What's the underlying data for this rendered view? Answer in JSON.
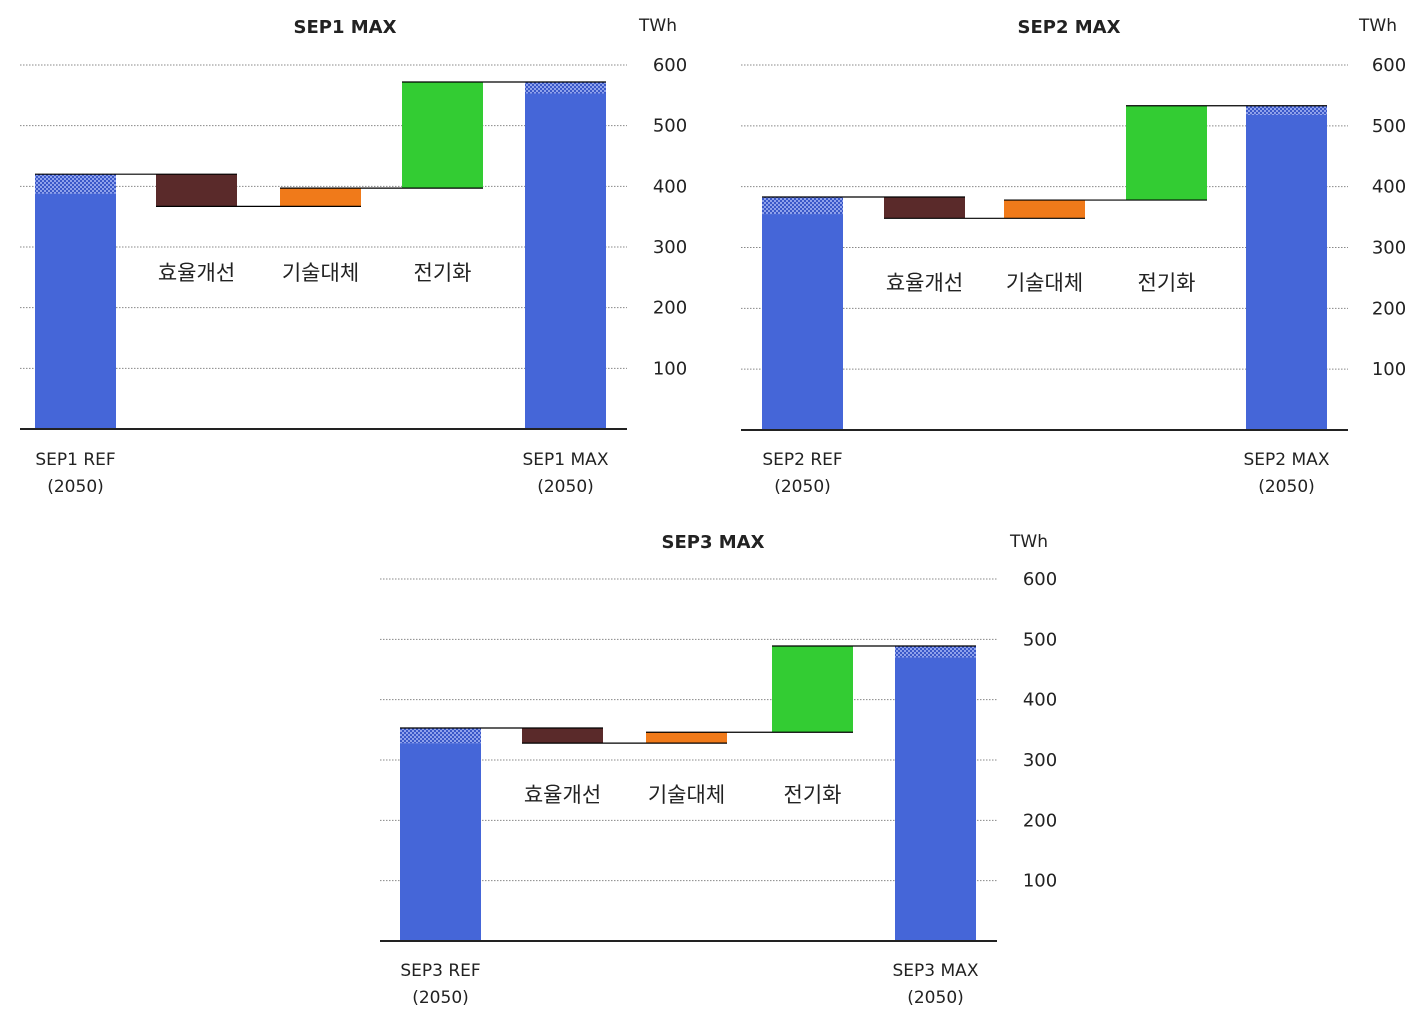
{
  "colors": {
    "total": "#4566D8",
    "efficiency": "#5A2A2A",
    "substitution": "#F07A1A",
    "electrification": "#33CC33",
    "grid": "#888888",
    "axis": "#222222"
  },
  "chart_data": [
    {
      "type": "waterfall",
      "title": "SEP1 MAX",
      "unit": "TWh",
      "ylim": [
        0,
        600
      ],
      "yticks": [
        100,
        200,
        300,
        400,
        500,
        600
      ],
      "grid": true,
      "start": {
        "label": [
          "SEP1 REF",
          "(2050)"
        ],
        "value": 420,
        "hatched_from": 388
      },
      "steps": [
        {
          "label": "효율개선",
          "delta": -53,
          "color_key": "efficiency"
        },
        {
          "label": "기술대체",
          "delta": 30,
          "color_key": "substitution"
        },
        {
          "label": "전기화",
          "delta": 175,
          "color_key": "electrification"
        }
      ],
      "end": {
        "label": [
          "SEP1 MAX",
          "(2050)"
        ],
        "value": 572,
        "hatched_from": 553
      }
    },
    {
      "type": "waterfall",
      "title": "SEP2 MAX",
      "unit": "TWh",
      "ylim": [
        0,
        600
      ],
      "yticks": [
        100,
        200,
        300,
        400,
        500,
        600
      ],
      "grid": true,
      "start": {
        "label": [
          "SEP2 REF",
          "(2050)"
        ],
        "value": 383,
        "hatched_from": 355
      },
      "steps": [
        {
          "label": "효율개선",
          "delta": -35,
          "color_key": "efficiency"
        },
        {
          "label": "기술대체",
          "delta": 30,
          "color_key": "substitution"
        },
        {
          "label": "전기화",
          "delta": 155,
          "color_key": "electrification"
        }
      ],
      "end": {
        "label": [
          "SEP2 MAX",
          "(2050)"
        ],
        "value": 533,
        "hatched_from": 518
      }
    },
    {
      "type": "waterfall",
      "title": "SEP3 MAX",
      "unit": "TWh",
      "ylim": [
        0,
        600
      ],
      "yticks": [
        100,
        200,
        300,
        400,
        500,
        600
      ],
      "grid": true,
      "start": {
        "label": [
          "SEP3 REF",
          "(2050)"
        ],
        "value": 353,
        "hatched_from": 328
      },
      "steps": [
        {
          "label": "효율개선",
          "delta": -25,
          "color_key": "efficiency"
        },
        {
          "label": "기술대체",
          "delta": 18,
          "color_key": "substitution"
        },
        {
          "label": "전기화",
          "delta": 143,
          "color_key": "electrification"
        }
      ],
      "end": {
        "label": [
          "SEP3 MAX",
          "(2050)"
        ],
        "value": 489,
        "hatched_from": 470
      }
    }
  ]
}
